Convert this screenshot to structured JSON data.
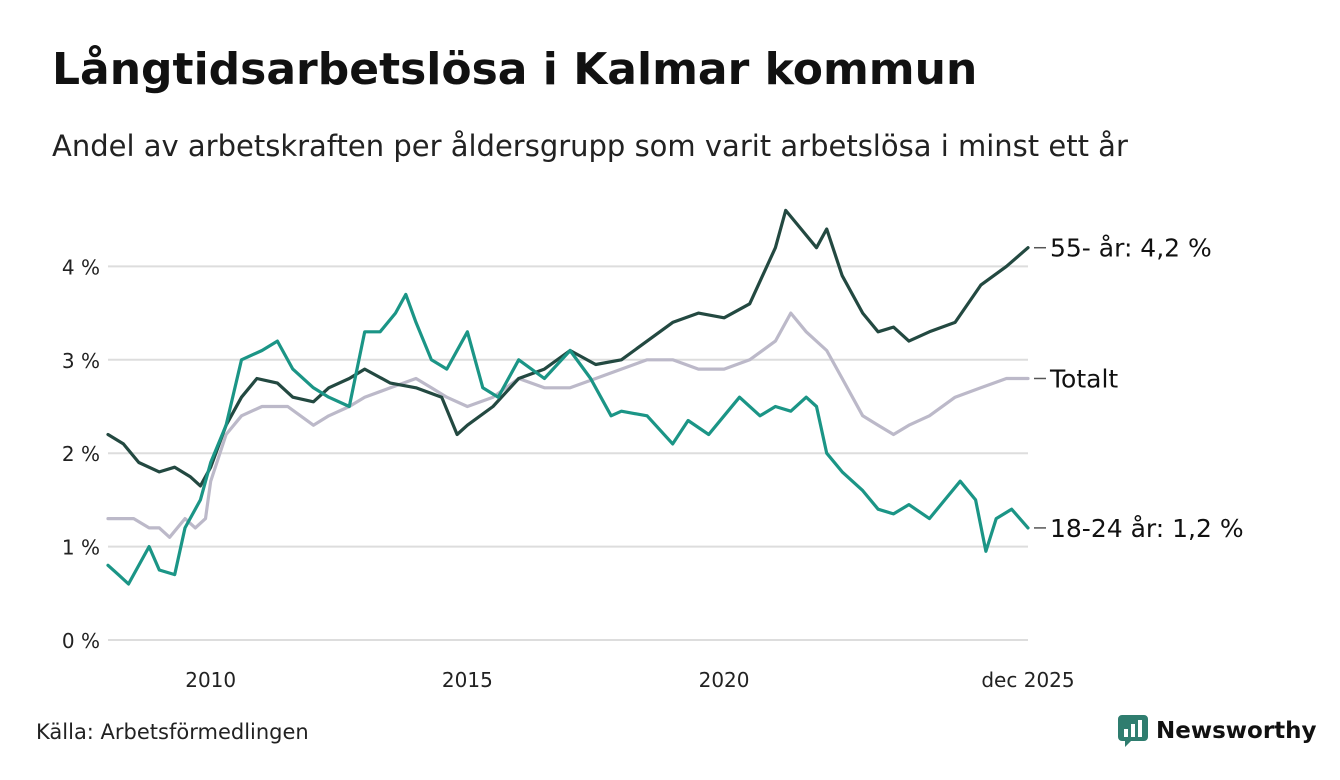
{
  "chart_data": {
    "type": "line",
    "title": "Långtidsarbetslösa i Kalmar kommun",
    "subtitle": "Andel av arbetskraften per åldersgrupp som varit arbetslösa i minst ett år",
    "xlabel": "",
    "ylabel": "",
    "ylim": [
      0,
      5
    ],
    "xlim": [
      2008.0,
      2025.92
    ],
    "yticks": [
      {
        "value": 0,
        "label": "0 %"
      },
      {
        "value": 1,
        "label": "1 %"
      },
      {
        "value": 2,
        "label": "2 %"
      },
      {
        "value": 3,
        "label": "3 %"
      },
      {
        "value": 4,
        "label": "4 %"
      }
    ],
    "xticks": [
      {
        "value": 2010,
        "label": "2010"
      },
      {
        "value": 2015,
        "label": "2015"
      },
      {
        "value": 2020,
        "label": "2020"
      },
      {
        "value": 2025.92,
        "label": "dec 2025"
      }
    ],
    "grid": true,
    "legend": "end-of-line labels (right)",
    "series": [
      {
        "name": "Totalt",
        "end_label": "Totalt",
        "color": "#bcb9c9",
        "points": [
          [
            2008.0,
            1.3
          ],
          [
            2008.5,
            1.3
          ],
          [
            2008.8,
            1.2
          ],
          [
            2009.0,
            1.2
          ],
          [
            2009.2,
            1.1
          ],
          [
            2009.5,
            1.3
          ],
          [
            2009.7,
            1.2
          ],
          [
            2009.9,
            1.3
          ],
          [
            2010.0,
            1.7
          ],
          [
            2010.3,
            2.2
          ],
          [
            2010.6,
            2.4
          ],
          [
            2011.0,
            2.5
          ],
          [
            2011.5,
            2.5
          ],
          [
            2012.0,
            2.3
          ],
          [
            2012.3,
            2.4
          ],
          [
            2012.7,
            2.5
          ],
          [
            2013.0,
            2.6
          ],
          [
            2013.5,
            2.7
          ],
          [
            2014.0,
            2.8
          ],
          [
            2014.3,
            2.7
          ],
          [
            2014.6,
            2.6
          ],
          [
            2015.0,
            2.5
          ],
          [
            2015.5,
            2.6
          ],
          [
            2016.0,
            2.8
          ],
          [
            2016.5,
            2.7
          ],
          [
            2017.0,
            2.7
          ],
          [
            2017.5,
            2.8
          ],
          [
            2018.0,
            2.9
          ],
          [
            2018.5,
            3.0
          ],
          [
            2019.0,
            3.0
          ],
          [
            2019.5,
            2.9
          ],
          [
            2020.0,
            2.9
          ],
          [
            2020.5,
            3.0
          ],
          [
            2021.0,
            3.2
          ],
          [
            2021.3,
            3.5
          ],
          [
            2021.6,
            3.3
          ],
          [
            2022.0,
            3.1
          ],
          [
            2022.3,
            2.8
          ],
          [
            2022.7,
            2.4
          ],
          [
            2023.0,
            2.3
          ],
          [
            2023.3,
            2.2
          ],
          [
            2023.6,
            2.3
          ],
          [
            2024.0,
            2.4
          ],
          [
            2024.5,
            2.6
          ],
          [
            2025.0,
            2.7
          ],
          [
            2025.5,
            2.8
          ],
          [
            2025.92,
            2.8
          ]
        ]
      },
      {
        "name": "55- år",
        "end_label": "55- år: 4,2 %",
        "color": "#234941",
        "points": [
          [
            2008.0,
            2.2
          ],
          [
            2008.3,
            2.1
          ],
          [
            2008.6,
            1.9
          ],
          [
            2009.0,
            1.8
          ],
          [
            2009.3,
            1.85
          ],
          [
            2009.6,
            1.75
          ],
          [
            2009.8,
            1.65
          ],
          [
            2010.0,
            1.85
          ],
          [
            2010.3,
            2.3
          ],
          [
            2010.6,
            2.6
          ],
          [
            2010.9,
            2.8
          ],
          [
            2011.3,
            2.75
          ],
          [
            2011.6,
            2.6
          ],
          [
            2012.0,
            2.55
          ],
          [
            2012.3,
            2.7
          ],
          [
            2012.7,
            2.8
          ],
          [
            2013.0,
            2.9
          ],
          [
            2013.5,
            2.75
          ],
          [
            2014.0,
            2.7
          ],
          [
            2014.5,
            2.6
          ],
          [
            2014.8,
            2.2
          ],
          [
            2015.0,
            2.3
          ],
          [
            2015.5,
            2.5
          ],
          [
            2016.0,
            2.8
          ],
          [
            2016.5,
            2.9
          ],
          [
            2017.0,
            3.1
          ],
          [
            2017.5,
            2.95
          ],
          [
            2018.0,
            3.0
          ],
          [
            2018.5,
            3.2
          ],
          [
            2019.0,
            3.4
          ],
          [
            2019.5,
            3.5
          ],
          [
            2020.0,
            3.45
          ],
          [
            2020.5,
            3.6
          ],
          [
            2021.0,
            4.2
          ],
          [
            2021.2,
            4.6
          ],
          [
            2021.5,
            4.4
          ],
          [
            2021.8,
            4.2
          ],
          [
            2022.0,
            4.4
          ],
          [
            2022.3,
            3.9
          ],
          [
            2022.7,
            3.5
          ],
          [
            2023.0,
            3.3
          ],
          [
            2023.3,
            3.35
          ],
          [
            2023.6,
            3.2
          ],
          [
            2024.0,
            3.3
          ],
          [
            2024.5,
            3.4
          ],
          [
            2025.0,
            3.8
          ],
          [
            2025.5,
            4.0
          ],
          [
            2025.92,
            4.2
          ]
        ]
      },
      {
        "name": "18-24 år",
        "end_label": "18-24 år: 1,2 %",
        "color": "#1b9586",
        "points": [
          [
            2008.0,
            0.8
          ],
          [
            2008.2,
            0.7
          ],
          [
            2008.4,
            0.6
          ],
          [
            2008.8,
            1.0
          ],
          [
            2009.0,
            0.75
          ],
          [
            2009.3,
            0.7
          ],
          [
            2009.5,
            1.2
          ],
          [
            2009.8,
            1.5
          ],
          [
            2010.0,
            1.9
          ],
          [
            2010.3,
            2.3
          ],
          [
            2010.6,
            3.0
          ],
          [
            2011.0,
            3.1
          ],
          [
            2011.3,
            3.2
          ],
          [
            2011.6,
            2.9
          ],
          [
            2012.0,
            2.7
          ],
          [
            2012.3,
            2.6
          ],
          [
            2012.7,
            2.5
          ],
          [
            2013.0,
            3.3
          ],
          [
            2013.3,
            3.3
          ],
          [
            2013.6,
            3.5
          ],
          [
            2013.8,
            3.7
          ],
          [
            2014.0,
            3.4
          ],
          [
            2014.3,
            3.0
          ],
          [
            2014.6,
            2.9
          ],
          [
            2015.0,
            3.3
          ],
          [
            2015.3,
            2.7
          ],
          [
            2015.6,
            2.6
          ],
          [
            2016.0,
            3.0
          ],
          [
            2016.5,
            2.8
          ],
          [
            2017.0,
            3.1
          ],
          [
            2017.4,
            2.8
          ],
          [
            2017.8,
            2.4
          ],
          [
            2018.0,
            2.45
          ],
          [
            2018.5,
            2.4
          ],
          [
            2019.0,
            2.1
          ],
          [
            2019.3,
            2.35
          ],
          [
            2019.7,
            2.2
          ],
          [
            2020.0,
            2.4
          ],
          [
            2020.3,
            2.6
          ],
          [
            2020.7,
            2.4
          ],
          [
            2021.0,
            2.5
          ],
          [
            2021.3,
            2.45
          ],
          [
            2021.6,
            2.6
          ],
          [
            2021.8,
            2.5
          ],
          [
            2022.0,
            2.0
          ],
          [
            2022.3,
            1.8
          ],
          [
            2022.7,
            1.6
          ],
          [
            2023.0,
            1.4
          ],
          [
            2023.3,
            1.35
          ],
          [
            2023.6,
            1.45
          ],
          [
            2024.0,
            1.3
          ],
          [
            2024.3,
            1.5
          ],
          [
            2024.6,
            1.7
          ],
          [
            2024.9,
            1.5
          ],
          [
            2025.1,
            0.95
          ],
          [
            2025.3,
            1.3
          ],
          [
            2025.6,
            1.4
          ],
          [
            2025.92,
            1.2
          ]
        ]
      }
    ]
  },
  "footer": {
    "source": "Källa: Arbetsförmedlingen",
    "brand": "Newsworthy",
    "brand_icon": "newsworthy-logo-icon"
  },
  "colors": {
    "brand": "#2f7d6f",
    "grid": "#dddddd",
    "text": "#111111"
  }
}
